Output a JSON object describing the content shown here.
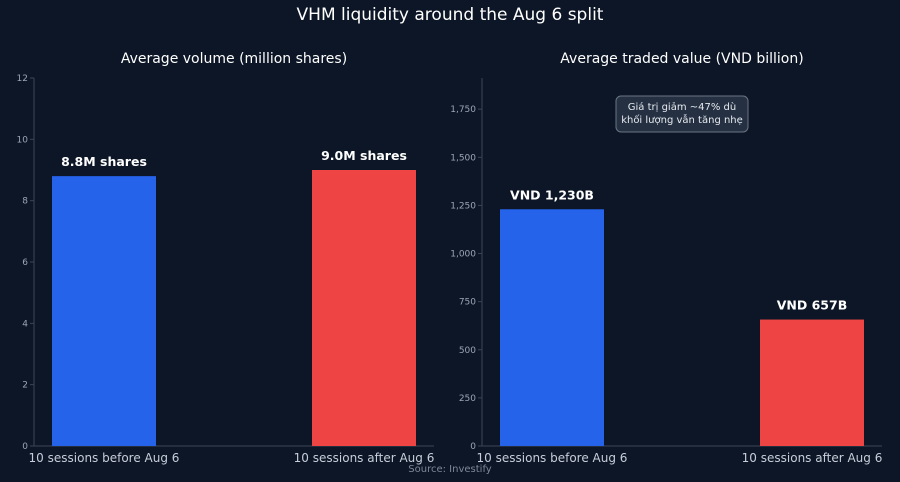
{
  "page": {
    "title": "VHM liquidity around the Aug 6 split",
    "source": "Source: Investify"
  },
  "colors": {
    "background": "#0c1626",
    "before": "#2563eb",
    "after": "#ef4444",
    "axis": "#3b4556",
    "tick_text": "#9aa5b6",
    "note_bg": "#253142",
    "note_border": "#6b7482"
  },
  "chart_data": [
    {
      "type": "bar",
      "title": "Average volume (million shares)",
      "categories": [
        "10 sessions before Aug 6",
        "10 sessions after Aug 6"
      ],
      "values": [
        8.8,
        9.0
      ],
      "data_labels": [
        "8.8M shares",
        "9.0M shares"
      ],
      "colors": [
        "#2563eb",
        "#ef4444"
      ],
      "ylim": [
        0,
        12
      ],
      "yticks": [
        0,
        2,
        4,
        6,
        8,
        10,
        12
      ],
      "ytick_labels": [
        "0",
        "2",
        "4",
        "6",
        "8",
        "10",
        "12"
      ],
      "grid": false
    },
    {
      "type": "bar",
      "title": "Average traded value (VND billion)",
      "categories": [
        "10 sessions before Aug 6",
        "10 sessions after Aug 6"
      ],
      "values": [
        1230,
        657
      ],
      "data_labels": [
        "VND 1,230B",
        "VND 657B"
      ],
      "colors": [
        "#2563eb",
        "#ef4444"
      ],
      "ylim": [
        0,
        1912
      ],
      "yticks": [
        0,
        250,
        500,
        750,
        1000,
        1250,
        1500,
        1750
      ],
      "ytick_labels": [
        "0",
        "250",
        "500",
        "750",
        "1,000",
        "1,250",
        "1,500",
        "1,750"
      ],
      "grid": false,
      "annotation": {
        "lines": [
          "Giá trị giảm ~47% dù",
          "khối lượng vẫn tăng nhẹ"
        ],
        "placement": "top-center"
      }
    }
  ]
}
